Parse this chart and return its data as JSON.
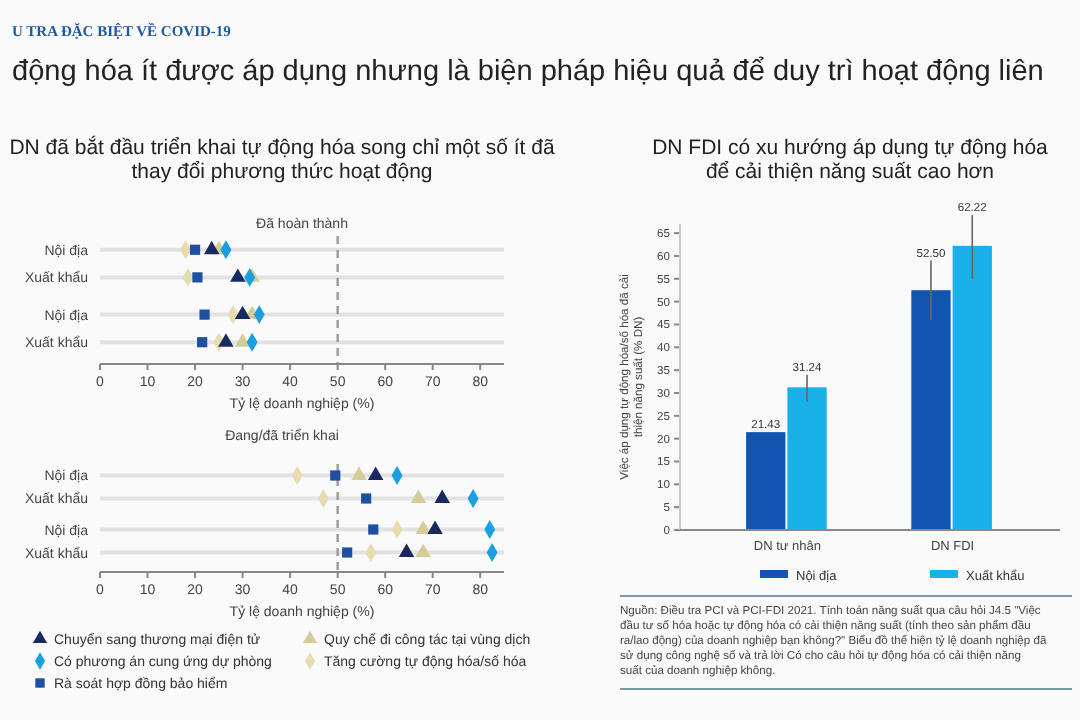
{
  "chart_data": [
    {
      "type": "scatter",
      "orientation": "horizontal",
      "title": "DN đã bắt đầu triển khai tự động hóa song chỉ một số ít đã thay đổi phương thức hoạt động",
      "subtitle": "Đã hoàn thành",
      "annotations": [
        "U TRA ĐẶC BIỆT VỀ COVID-19",
        "động hóa ít được áp dụng nhưng là biện pháp hiệu quả để duy trì hoạt động liên"
      ],
      "categories": [
        "Nội địa",
        "Xuất khẩu",
        "Nội địa",
        "Xuất khẩu"
      ],
      "xlim": [
        0,
        85
      ],
      "xticks": [
        0,
        10,
        20,
        30,
        40,
        50,
        60,
        70,
        80
      ],
      "xlabel": "Tỷ lệ doanh nghiệp (%)",
      "grid": "y",
      "ref_lines": [
        {
          "axis": "x",
          "value": 50,
          "color": "#999999",
          "line_style": "dashed"
        }
      ],
      "series": [
        {
          "color": "#1a2a5e",
          "marker": "triangle",
          "values": [
            23.5,
            29,
            30,
            26.5
          ]
        },
        {
          "color": "#1aa0e0",
          "marker": "diamond",
          "values": [
            26.5,
            31.5,
            33.5,
            32
          ]
        },
        {
          "color": "#1e4fa0",
          "marker": "square",
          "values": [
            20,
            20.5,
            22,
            21.5
          ]
        },
        {
          "color": "#d6cc98",
          "marker": "triangle",
          "values": [
            25,
            32,
            32,
            30
          ]
        },
        {
          "color": "#e6dcb0",
          "marker": "diamond",
          "values": [
            18,
            18.5,
            28,
            25
          ]
        }
      ]
    },
    {
      "type": "scatter",
      "orientation": "horizontal",
      "title": "Đang/đã triển khai",
      "categories": [
        "Nội địa",
        "Xuất khẩu",
        "Nội địa",
        "Xuất khẩu"
      ],
      "xlim": [
        0,
        85
      ],
      "xticks": [
        0,
        10,
        20,
        30,
        40,
        50,
        60,
        70,
        80
      ],
      "xlabel": "Tỷ lệ doanh nghiệp (%)",
      "grid": "y",
      "legend": "bottom",
      "ref_lines": [
        {
          "axis": "x",
          "value": 50,
          "color": "#999999",
          "line_style": "dashed"
        }
      ],
      "series": [
        {
          "name": "Chuyển sang thương mại điện tử",
          "color": "#1a2a5e",
          "marker": "triangle",
          "values": [
            58,
            72,
            70.5,
            64.5
          ]
        },
        {
          "name": "Có phương án cung ứng dự phòng",
          "color": "#1aa0e0",
          "marker": "diamond",
          "values": [
            62.5,
            78.5,
            82,
            82.5
          ]
        },
        {
          "name": "Rà soát hợp đồng bảo hiểm",
          "color": "#1e4fa0",
          "marker": "square",
          "values": [
            49.5,
            56,
            57.5,
            52
          ]
        },
        {
          "name": "Quy chế đi công tác tại vùng dịch",
          "color": "#d6cc98",
          "marker": "triangle",
          "values": [
            54.5,
            67,
            68,
            68
          ]
        },
        {
          "name": "Tăng cường tự động hóa/số hóa",
          "color": "#e6dcb0",
          "marker": "diamond",
          "values": [
            41.5,
            47,
            62.5,
            57
          ]
        }
      ]
    },
    {
      "type": "bar",
      "title": "DN FDI có xu hướng áp dụng tự động hóa để cải thiện năng suất cao hơn",
      "ylabel": "Việc áp dụng tự động hóa/số hóa đã cải thiện năng suất (% DN)",
      "categories": [
        "DN tư nhân",
        "DN FDI"
      ],
      "ylim": [
        0,
        67
      ],
      "yticks": [
        0,
        5,
        10,
        15,
        20,
        25,
        30,
        35,
        40,
        45,
        50,
        55,
        60,
        65
      ],
      "legend": "bottom",
      "annotations": [
        "Nguồn: Điều tra PCI và PCI-FDI 2021. Tính toán năng suất qua câu hỏi J4.5 \"Việc đầu tư số hóa hoặc tự động hóa có cải thiện năng suất (tính theo sản phẩm đầu ra/lao động) của doanh nghiệp bạn không?\" Biểu đồ thể hiện tỷ lệ doanh nghiệp đã sử dụng công nghệ số và trả lời Có cho câu hỏi tự động hóa có cải thiện năng suất của doanh nghiệp không."
      ],
      "series": [
        {
          "name": "Nội địa",
          "color": "#1155b0",
          "values": [
            21.43,
            52.5
          ],
          "value_labels": [
            "21.43",
            "52.50"
          ],
          "errors": [
            null,
            [
              46,
              59
            ]
          ]
        },
        {
          "name": "Xuất khẩu",
          "color": "#1ab0e8",
          "values": [
            31.24,
            62.22
          ],
          "value_labels": [
            "31.24",
            "62.22"
          ],
          "errors": [
            [
              28,
              34
            ],
            [
              55,
              69
            ]
          ]
        }
      ]
    }
  ]
}
